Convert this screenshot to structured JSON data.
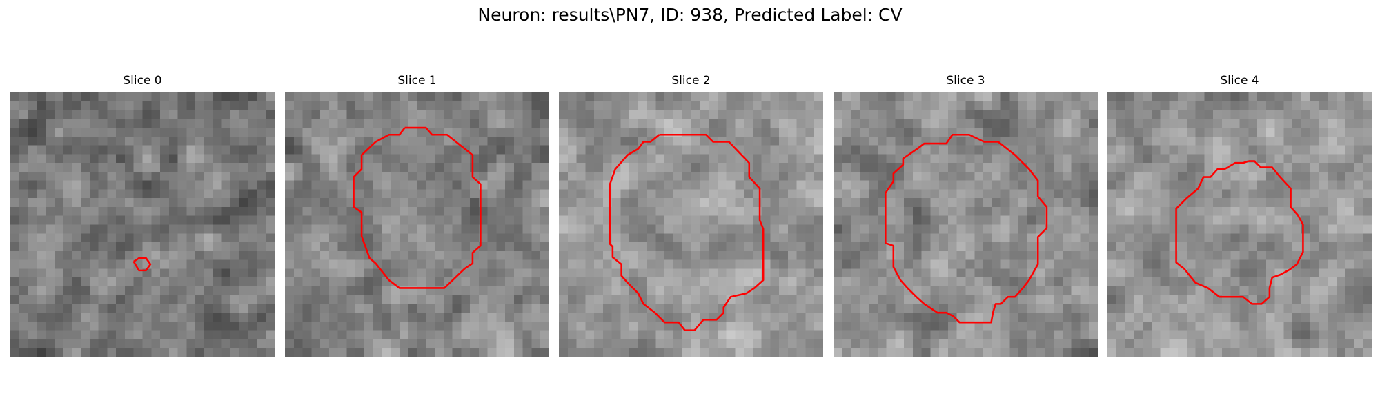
{
  "figure": {
    "title": "Neuron: results\\PN7, ID: 938, Predicted Label: CV"
  },
  "panels": [
    {
      "title": "Slice 0",
      "image": {
        "mean_gray": 118,
        "spread": 55,
        "grid": 30,
        "seed": 11
      },
      "contour": [
        [
          14,
          19.2
        ],
        [
          14.6,
          18.8
        ],
        [
          15.4,
          18.8
        ],
        [
          15.9,
          19.5
        ],
        [
          15.4,
          20.2
        ],
        [
          14.6,
          20.2
        ],
        [
          14,
          19.2
        ]
      ]
    },
    {
      "title": "Slice 1",
      "image": {
        "mean_gray": 132,
        "spread": 50,
        "grid": 30,
        "seed": 23
      },
      "contour": [
        [
          13.6,
          4
        ],
        [
          16,
          4
        ],
        [
          16.7,
          4.8
        ],
        [
          18.4,
          4.8
        ],
        [
          21.3,
          7.1
        ],
        [
          21.3,
          9.6
        ],
        [
          22.2,
          10.4
        ],
        [
          22.2,
          17.4
        ],
        [
          21.3,
          18.2
        ],
        [
          21.3,
          19.4
        ],
        [
          20.4,
          20
        ],
        [
          18.1,
          22.2
        ],
        [
          13,
          22.2
        ],
        [
          11.8,
          21.3
        ],
        [
          10.3,
          19.4
        ],
        [
          9.6,
          18.8
        ],
        [
          8.7,
          16.3
        ],
        [
          8.7,
          13.6
        ],
        [
          7.8,
          13
        ],
        [
          7.8,
          9.6
        ],
        [
          8.7,
          8.7
        ],
        [
          8.7,
          7.1
        ],
        [
          10.3,
          5.6
        ],
        [
          11.8,
          4.8
        ],
        [
          13,
          4.8
        ],
        [
          13.6,
          4
        ]
      ]
    },
    {
      "title": "Slice 2",
      "image": {
        "mean_gray": 150,
        "spread": 48,
        "grid": 30,
        "seed": 37
      },
      "contour": [
        [
          11.4,
          4.8
        ],
        [
          16.7,
          4.8
        ],
        [
          17.5,
          5.6
        ],
        [
          19.3,
          5.6
        ],
        [
          21.6,
          8
        ],
        [
          21.6,
          9.6
        ],
        [
          22.8,
          10.9
        ],
        [
          22.8,
          14.5
        ],
        [
          23.2,
          15.5
        ],
        [
          23.2,
          21.3
        ],
        [
          22.2,
          22.2
        ],
        [
          21.3,
          22.8
        ],
        [
          19.5,
          23.2
        ],
        [
          18.7,
          24.4
        ],
        [
          18.7,
          25
        ],
        [
          17.9,
          25.8
        ],
        [
          16.4,
          25.8
        ],
        [
          15.4,
          27
        ],
        [
          14.3,
          27
        ],
        [
          13.6,
          26.1
        ],
        [
          12,
          26.1
        ],
        [
          10.9,
          25
        ],
        [
          9.6,
          24
        ],
        [
          9,
          22.8
        ],
        [
          7.8,
          21.6
        ],
        [
          7.1,
          20.8
        ],
        [
          7.1,
          19.5
        ],
        [
          6.1,
          18.7
        ],
        [
          6.1,
          17.5
        ],
        [
          5.8,
          17.2
        ],
        [
          5.8,
          10.4
        ],
        [
          6.4,
          8.7
        ],
        [
          7.8,
          7.1
        ],
        [
          9,
          6.4
        ],
        [
          9.6,
          5.6
        ],
        [
          10.4,
          5.6
        ],
        [
          11.4,
          4.8
        ]
      ]
    },
    {
      "title": "Slice 3",
      "image": {
        "mean_gray": 140,
        "spread": 50,
        "grid": 30,
        "seed": 41
      },
      "contour": [
        [
          14.6,
          4.8
        ],
        [
          15.4,
          4.8
        ],
        [
          17.1,
          5.6
        ],
        [
          18.7,
          5.6
        ],
        [
          20.6,
          7.1
        ],
        [
          21.3,
          7.8
        ],
        [
          22.2,
          8.7
        ],
        [
          23.2,
          10
        ],
        [
          23.2,
          11.8
        ],
        [
          24.2,
          13
        ],
        [
          24.2,
          15.4
        ],
        [
          23.2,
          16.4
        ],
        [
          23.2,
          19.5
        ],
        [
          22.2,
          21.3
        ],
        [
          21.5,
          22.2
        ],
        [
          20.6,
          23.2
        ],
        [
          19.8,
          23.2
        ],
        [
          19,
          24
        ],
        [
          18.4,
          24
        ],
        [
          18.1,
          25
        ],
        [
          17.9,
          26.1
        ],
        [
          14.3,
          26.1
        ],
        [
          13.6,
          25.4
        ],
        [
          12.8,
          25
        ],
        [
          11.8,
          25
        ],
        [
          10.3,
          24
        ],
        [
          9.4,
          23.2
        ],
        [
          8.4,
          22.2
        ],
        [
          7.6,
          21.3
        ],
        [
          6.8,
          19.8
        ],
        [
          6.8,
          17.4
        ],
        [
          5.9,
          17.1
        ],
        [
          5.9,
          13
        ],
        [
          5.9,
          11.4
        ],
        [
          6.8,
          10.1
        ],
        [
          6.8,
          9.2
        ],
        [
          7.9,
          8.2
        ],
        [
          7.9,
          7.5
        ],
        [
          9.5,
          6.4
        ],
        [
          10.3,
          5.8
        ],
        [
          12.8,
          5.8
        ],
        [
          13.5,
          4.8
        ],
        [
          14.6,
          4.8
        ]
      ]
    },
    {
      "title": "Slice 4",
      "image": {
        "mean_gray": 150,
        "spread": 50,
        "grid": 30,
        "seed": 53
      },
      "contour": [
        [
          16,
          7.8
        ],
        [
          16.7,
          7.8
        ],
        [
          17.4,
          8.5
        ],
        [
          18.7,
          8.5
        ],
        [
          19.6,
          9.6
        ],
        [
          20.8,
          10.9
        ],
        [
          20.8,
          13
        ],
        [
          21.6,
          13.9
        ],
        [
          22.2,
          15
        ],
        [
          22.2,
          18.1
        ],
        [
          21.5,
          19.5
        ],
        [
          20.7,
          20.1
        ],
        [
          19.6,
          20.7
        ],
        [
          18.7,
          21
        ],
        [
          18.4,
          22.2
        ],
        [
          18.4,
          23.2
        ],
        [
          17.5,
          24
        ],
        [
          16.4,
          24
        ],
        [
          15.4,
          23.2
        ],
        [
          12.7,
          23.2
        ],
        [
          11.4,
          22.2
        ],
        [
          10,
          21.6
        ],
        [
          8.7,
          20
        ],
        [
          7.8,
          19.3
        ],
        [
          7.8,
          13.2
        ],
        [
          9,
          12
        ],
        [
          10.3,
          10.9
        ],
        [
          10.9,
          9.6
        ],
        [
          11.7,
          9.6
        ],
        [
          12.5,
          8.7
        ],
        [
          13.3,
          8.7
        ],
        [
          14.5,
          8
        ],
        [
          15.4,
          8
        ],
        [
          16,
          7.8
        ]
      ]
    }
  ],
  "colors": {
    "contour": "#ff0000",
    "background": "#ffffff",
    "text": "#000000"
  }
}
